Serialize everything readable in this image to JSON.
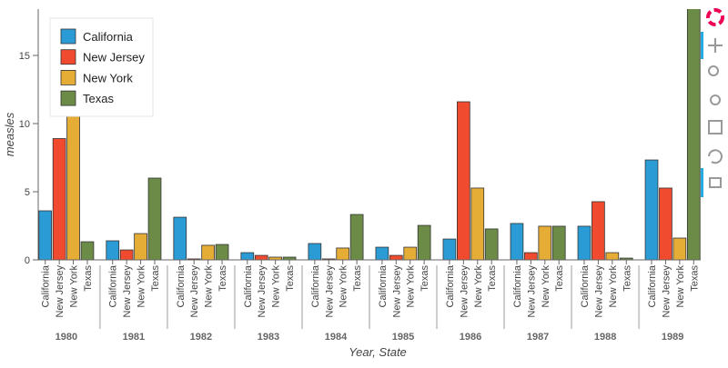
{
  "chart_data": {
    "type": "bar",
    "categories": [
      "1980",
      "1981",
      "1982",
      "1983",
      "1984",
      "1985",
      "1986",
      "1987",
      "1988",
      "1989"
    ],
    "series": [
      {
        "name": "California",
        "color": "#2b9bd6",
        "values": [
          3.6,
          1.4,
          3.13,
          0.53,
          1.2,
          0.93,
          1.53,
          2.67,
          2.47,
          7.33
        ]
      },
      {
        "name": "New Jersey",
        "color": "#f04b2e",
        "values": [
          8.9,
          0.73,
          0.07,
          0.33,
          0.07,
          0.33,
          11.6,
          0.53,
          4.27,
          5.27
        ]
      },
      {
        "name": "New York",
        "color": "#e5ac36",
        "values": [
          11.5,
          1.93,
          1.07,
          0.2,
          0.87,
          0.93,
          5.27,
          2.47,
          0.53,
          1.6
        ]
      },
      {
        "name": "Texas",
        "color": "#6c8b47",
        "values": [
          1.33,
          6.0,
          1.13,
          0.2,
          3.33,
          2.53,
          2.27,
          2.47,
          0.13,
          20
        ]
      }
    ],
    "x_label": "Year, State",
    "y_label": "measles",
    "ylim": [
      0,
      18.4
    ],
    "yticks": [
      0,
      5,
      10,
      15
    ],
    "legend": "top_left"
  }
}
